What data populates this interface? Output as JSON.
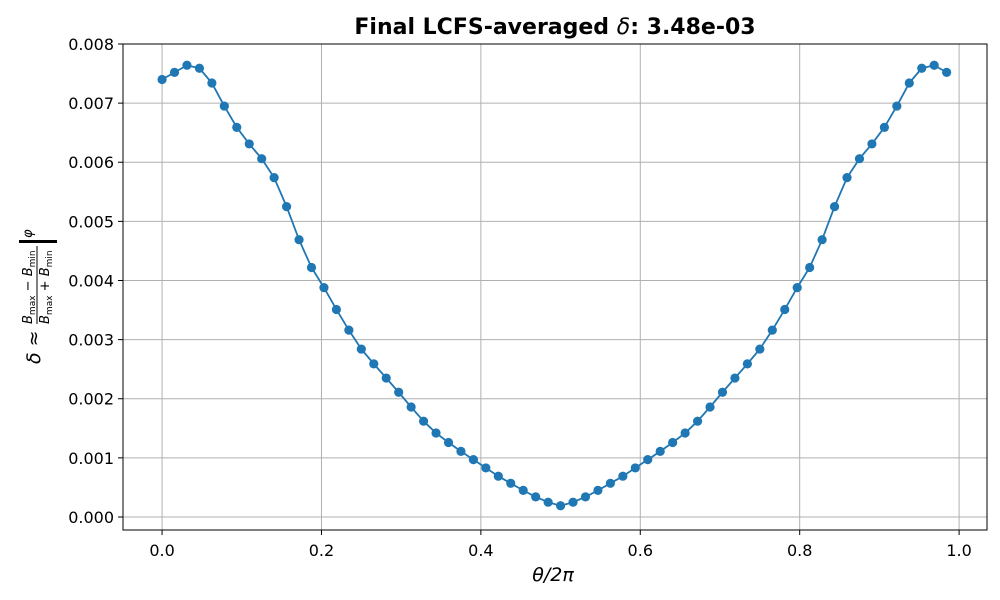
{
  "chart_data": {
    "type": "line",
    "title_prefix": "Final LCFS-averaged ",
    "title_symbol": "δ",
    "title_suffix": ": 3.48e-03",
    "xlabel": "θ/2π",
    "ylabel": "δ ≈ (Bmax − Bmin)/(Bmax + Bmin) |φ",
    "ylabel_parts": {
      "delta": "δ",
      "approx": "≈",
      "num_left": "B",
      "num_left_sub": "max",
      "num_mid": " − ",
      "num_right": "B",
      "num_right_sub": "min",
      "den_left": "B",
      "den_left_sub": "max",
      "den_mid": " + ",
      "den_right": "B",
      "den_right_sub": "min",
      "phi": "φ"
    },
    "xlim": [
      -0.049,
      1.035
    ],
    "ylim": [
      -0.00022,
      0.008
    ],
    "x_ticks": [
      0.0,
      0.2,
      0.4,
      0.6,
      0.8,
      1.0
    ],
    "x_tick_labels": [
      "0.0",
      "0.2",
      "0.4",
      "0.6",
      "0.8",
      "1.0"
    ],
    "y_ticks": [
      0.0,
      0.001,
      0.002,
      0.003,
      0.004,
      0.005,
      0.006,
      0.007,
      0.008
    ],
    "y_tick_labels": [
      "0.000",
      "0.001",
      "0.002",
      "0.003",
      "0.004",
      "0.005",
      "0.006",
      "0.007",
      "0.008"
    ],
    "grid": true,
    "color": "#1f77b4",
    "marker": "circle",
    "x": [
      0.0,
      0.015625,
      0.03125,
      0.046875,
      0.0625,
      0.078125,
      0.09375,
      0.109375,
      0.125,
      0.140625,
      0.15625,
      0.171875,
      0.1875,
      0.203125,
      0.21875,
      0.234375,
      0.25,
      0.265625,
      0.28125,
      0.296875,
      0.3125,
      0.328125,
      0.34375,
      0.359375,
      0.375,
      0.390625,
      0.40625,
      0.421875,
      0.4375,
      0.453125,
      0.46875,
      0.484375,
      0.5,
      0.515625,
      0.53125,
      0.546875,
      0.5625,
      0.578125,
      0.59375,
      0.609375,
      0.625,
      0.640625,
      0.65625,
      0.671875,
      0.6875,
      0.703125,
      0.71875,
      0.734375,
      0.75,
      0.765625,
      0.78125,
      0.796875,
      0.8125,
      0.828125,
      0.84375,
      0.859375,
      0.875,
      0.890625,
      0.90625,
      0.921875,
      0.9375,
      0.953125,
      0.96875,
      0.984375
    ],
    "y": [
      0.0074,
      0.00752,
      0.00764,
      0.00759,
      0.00734,
      0.00695,
      0.00659,
      0.00631,
      0.00606,
      0.00574,
      0.00525,
      0.00469,
      0.00422,
      0.00388,
      0.00351,
      0.00316,
      0.00284,
      0.00259,
      0.00235,
      0.00211,
      0.00186,
      0.00162,
      0.00142,
      0.00126,
      0.00111,
      0.00097,
      0.00083,
      0.00069,
      0.00057,
      0.00045,
      0.00034,
      0.00025,
      0.00019,
      0.00025,
      0.00034,
      0.00045,
      0.00057,
      0.00069,
      0.00083,
      0.00097,
      0.00111,
      0.00126,
      0.00142,
      0.00162,
      0.00186,
      0.00211,
      0.00235,
      0.00259,
      0.00284,
      0.00316,
      0.00351,
      0.00388,
      0.00422,
      0.00469,
      0.00525,
      0.00574,
      0.00606,
      0.00631,
      0.00659,
      0.00695,
      0.00734,
      0.00759,
      0.00764,
      0.00752
    ]
  }
}
